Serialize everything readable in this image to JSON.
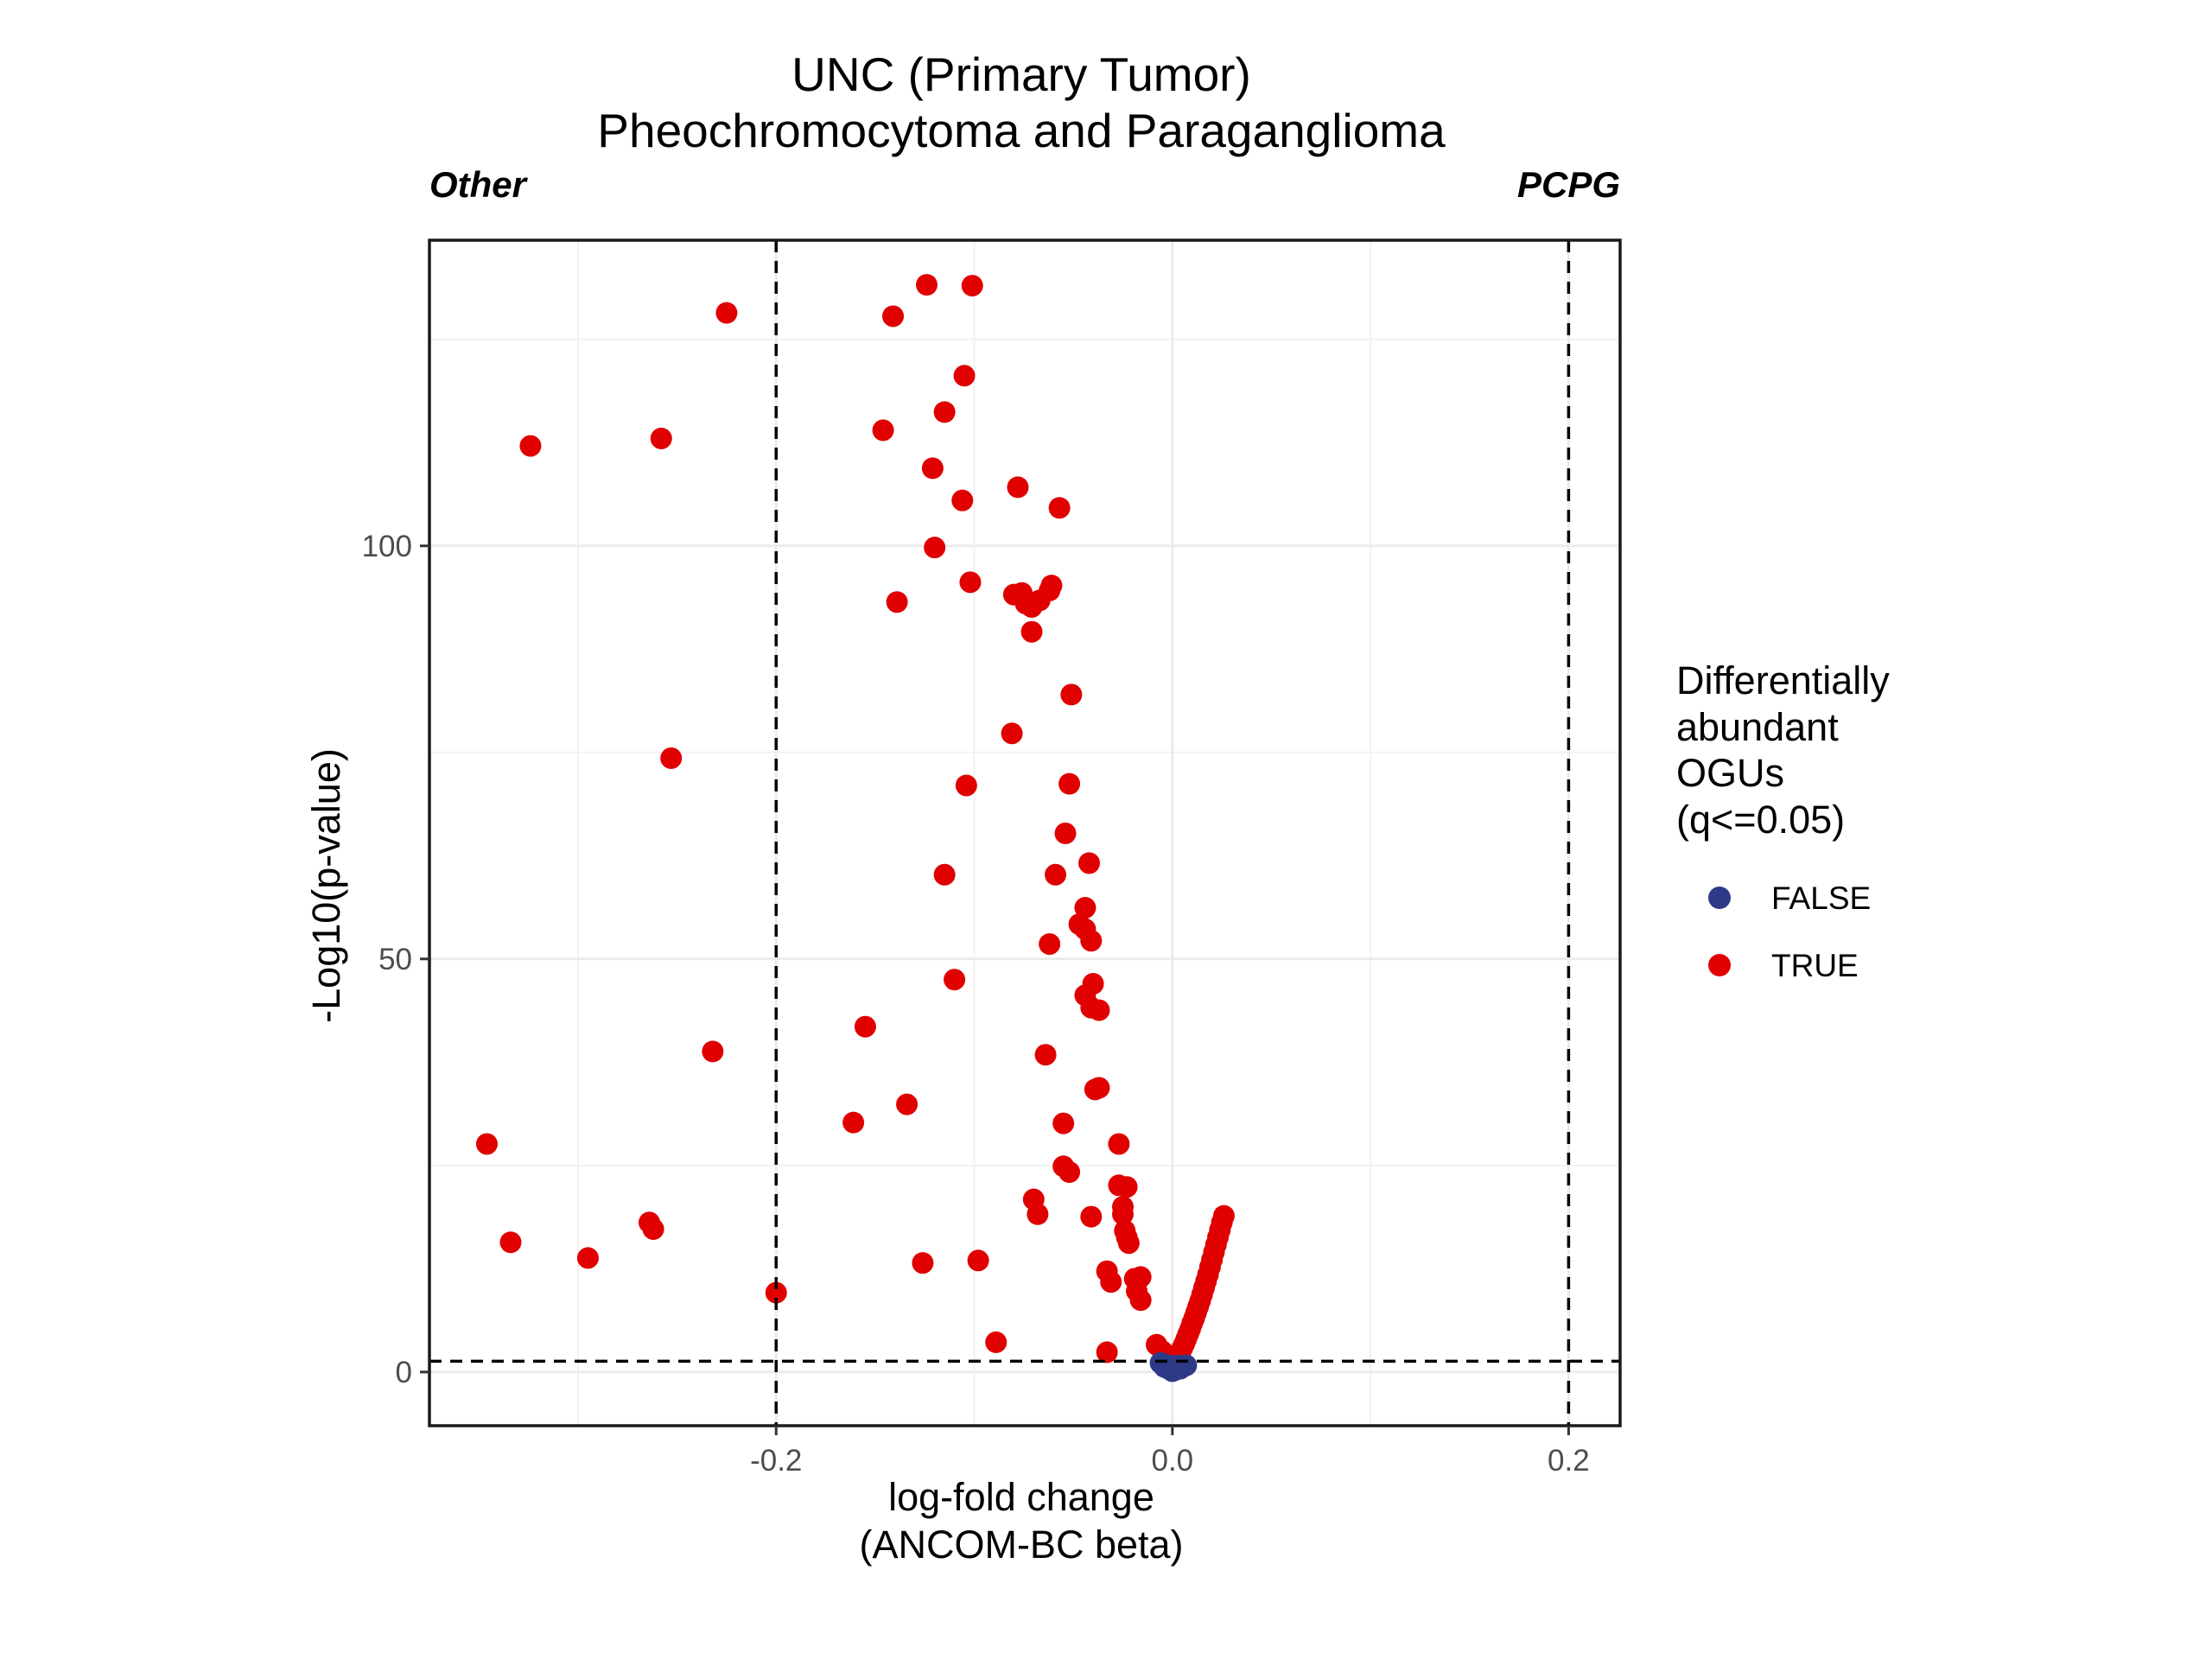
{
  "chart_data": {
    "type": "scatter",
    "title": "UNC (Primary Tumor)",
    "subtitle": "Pheochromocytoma and Paraganglioma",
    "left_annotation": "Other",
    "right_annotation": "PCPG",
    "xlabel": [
      "log-fold change",
      "(ANCOM-BC beta)"
    ],
    "ylabel": "-Log10(p-value)",
    "xlim": [
      -0.375,
      0.226
    ],
    "ylim": [
      -6.5,
      137
    ],
    "xticks": [
      -0.2,
      0.0,
      0.2
    ],
    "xtick_labels": [
      "-0.2",
      "0.0",
      "0.2"
    ],
    "yticks": [
      0,
      50,
      100
    ],
    "ytick_labels": [
      "0",
      "50",
      "100"
    ],
    "grid": true,
    "reference_lines": {
      "vertical": [
        -0.2,
        0.2
      ],
      "horizontal": [
        1.3
      ]
    },
    "legend": {
      "title": [
        "Differentially",
        "abundant",
        "OGUs",
        "(q<=0.05)"
      ],
      "placement": "right",
      "entries": [
        {
          "label": "FALSE",
          "color": "#2e3a87"
        },
        {
          "label": "TRUE",
          "color": "#e00000"
        }
      ]
    },
    "series": [
      {
        "name": "FALSE",
        "color": "#2e3a87",
        "points": [
          [
            -0.006,
            1.1
          ],
          [
            -0.004,
            0.6
          ],
          [
            -0.003,
            0.9
          ],
          [
            -0.002,
            0.4
          ],
          [
            -0.001,
            0.3
          ],
          [
            0.0,
            0.1
          ],
          [
            0.001,
            0.2
          ],
          [
            0.002,
            0.5
          ],
          [
            0.003,
            0.8
          ],
          [
            0.004,
            0.4
          ],
          [
            0.005,
            0.7
          ],
          [
            0.007,
            0.8
          ]
        ]
      },
      {
        "name": "TRUE",
        "color": "#e00000",
        "points": [
          [
            -0.124,
            131.6
          ],
          [
            -0.101,
            131.5
          ],
          [
            -0.225,
            128.2
          ],
          [
            -0.141,
            127.8
          ],
          [
            -0.105,
            120.6
          ],
          [
            -0.115,
            116.2
          ],
          [
            -0.146,
            114.0
          ],
          [
            -0.324,
            112.1
          ],
          [
            -0.258,
            113.0
          ],
          [
            -0.121,
            109.4
          ],
          [
            -0.078,
            107.1
          ],
          [
            -0.106,
            105.5
          ],
          [
            -0.057,
            104.6
          ],
          [
            -0.12,
            99.8
          ],
          [
            -0.102,
            95.6
          ],
          [
            -0.139,
            93.2
          ],
          [
            -0.08,
            94.1
          ],
          [
            -0.076,
            94.3
          ],
          [
            -0.074,
            93.0
          ],
          [
            -0.071,
            92.6
          ],
          [
            -0.067,
            93.4
          ],
          [
            -0.062,
            94.6
          ],
          [
            -0.061,
            95.2
          ],
          [
            -0.071,
            89.6
          ],
          [
            -0.051,
            82.0
          ],
          [
            -0.081,
            77.3
          ],
          [
            -0.253,
            74.3
          ],
          [
            -0.104,
            71.0
          ],
          [
            -0.052,
            71.2
          ],
          [
            -0.054,
            65.2
          ],
          [
            -0.115,
            60.2
          ],
          [
            -0.042,
            61.6
          ],
          [
            -0.059,
            60.2
          ],
          [
            -0.044,
            56.2
          ],
          [
            -0.047,
            54.2
          ],
          [
            -0.044,
            53.6
          ],
          [
            -0.041,
            52.2
          ],
          [
            -0.062,
            51.8
          ],
          [
            -0.11,
            47.5
          ],
          [
            -0.04,
            47.0
          ],
          [
            -0.044,
            45.6
          ],
          [
            -0.041,
            44.1
          ],
          [
            -0.037,
            43.8
          ],
          [
            -0.155,
            41.8
          ],
          [
            -0.232,
            38.8
          ],
          [
            -0.064,
            38.4
          ],
          [
            -0.039,
            34.2
          ],
          [
            -0.037,
            34.4
          ],
          [
            -0.134,
            32.4
          ],
          [
            -0.055,
            30.1
          ],
          [
            -0.161,
            30.2
          ],
          [
            -0.346,
            27.6
          ],
          [
            -0.027,
            27.6
          ],
          [
            -0.055,
            24.9
          ],
          [
            -0.052,
            24.2
          ],
          [
            -0.027,
            22.6
          ],
          [
            -0.023,
            22.4
          ],
          [
            -0.07,
            20.9
          ],
          [
            -0.025,
            20.0
          ],
          [
            -0.025,
            19.1
          ],
          [
            -0.068,
            19.1
          ],
          [
            -0.041,
            18.8
          ],
          [
            -0.264,
            18.1
          ],
          [
            -0.262,
            17.3
          ],
          [
            -0.024,
            17.1
          ],
          [
            -0.023,
            16.3
          ],
          [
            -0.334,
            15.7
          ],
          [
            -0.022,
            15.6
          ],
          [
            -0.295,
            13.8
          ],
          [
            -0.126,
            13.2
          ],
          [
            -0.098,
            13.5
          ],
          [
            -0.033,
            12.2
          ],
          [
            -0.031,
            10.9
          ],
          [
            -0.019,
            11.3
          ],
          [
            -0.016,
            11.5
          ],
          [
            -0.018,
            9.8
          ],
          [
            -0.016,
            8.7
          ],
          [
            -0.2,
            9.6
          ],
          [
            -0.089,
            3.6
          ],
          [
            -0.033,
            2.4
          ],
          [
            -0.008,
            3.3
          ],
          [
            -0.005,
            2.5
          ],
          [
            -0.003,
            2.0
          ],
          [
            -0.002,
            1.7
          ],
          [
            0.002,
            1.8
          ],
          [
            0.004,
            2.3
          ],
          [
            0.005,
            2.9
          ],
          [
            0.006,
            3.4
          ],
          [
            0.007,
            4.0
          ],
          [
            0.008,
            4.6
          ],
          [
            0.009,
            5.2
          ],
          [
            0.01,
            5.9
          ],
          [
            0.011,
            6.5
          ],
          [
            0.012,
            7.2
          ],
          [
            0.013,
            7.9
          ],
          [
            0.014,
            8.6
          ],
          [
            0.015,
            9.4
          ],
          [
            0.016,
            10.2
          ],
          [
            0.017,
            11.0
          ],
          [
            0.018,
            11.8
          ],
          [
            0.019,
            12.7
          ],
          [
            0.02,
            13.6
          ],
          [
            0.021,
            14.5
          ],
          [
            0.022,
            15.4
          ],
          [
            0.023,
            16.3
          ],
          [
            0.024,
            17.2
          ],
          [
            0.025,
            18.1
          ],
          [
            0.026,
            18.9
          ]
        ]
      }
    ]
  }
}
